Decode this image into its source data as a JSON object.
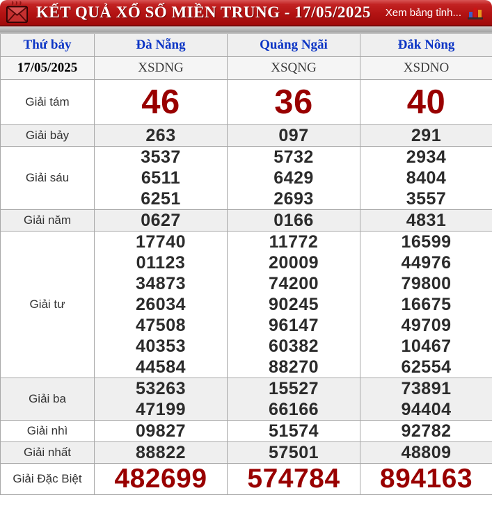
{
  "header": {
    "title": "KẾT QUẢ XỔ SỐ MIỀN TRUNG - 17/05/2025",
    "link_label": "Xem bảng tỉnh...",
    "icons": {
      "left": "envelope-icon",
      "right": "bar-chart-icon"
    },
    "colors": {
      "bar_red": "#b31313",
      "title_text": "#ffffff"
    }
  },
  "table": {
    "columns": [
      "Thứ bảy",
      "Đà Nẵng",
      "Quảng Ngãi",
      "Đắk Nông"
    ],
    "date_row": {
      "label": "17/05/2025",
      "codes": [
        "XSDNG",
        "XSQNG",
        "XSDNO"
      ]
    },
    "colors": {
      "header_text_blue": "#0c35c5",
      "highlight_red": "#990000",
      "number_dark": "#2b2b2b",
      "shade_bg": "#efefef"
    },
    "rows": [
      {
        "label": "Giải tám",
        "style": "big-red",
        "values": [
          [
            "46"
          ],
          [
            "36"
          ],
          [
            "40"
          ]
        ]
      },
      {
        "label": "Giải bảy",
        "style": "normal",
        "values": [
          [
            "263"
          ],
          [
            "097"
          ],
          [
            "291"
          ]
        ]
      },
      {
        "label": "Giải sáu",
        "style": "normal",
        "values": [
          [
            "3537",
            "6511",
            "6251"
          ],
          [
            "5732",
            "6429",
            "2693"
          ],
          [
            "2934",
            "8404",
            "3557"
          ]
        ]
      },
      {
        "label": "Giải năm",
        "style": "normal",
        "values": [
          [
            "0627"
          ],
          [
            "0166"
          ],
          [
            "4831"
          ]
        ]
      },
      {
        "label": "Giải tư",
        "style": "normal",
        "values": [
          [
            "17740",
            "01123",
            "34873",
            "26034",
            "47508",
            "40353",
            "44584"
          ],
          [
            "11772",
            "20009",
            "74200",
            "90245",
            "96147",
            "60382",
            "88270"
          ],
          [
            "16599",
            "44976",
            "79800",
            "16675",
            "49709",
            "10467",
            "62554"
          ]
        ]
      },
      {
        "label": "Giải ba",
        "style": "normal",
        "values": [
          [
            "53263",
            "47199"
          ],
          [
            "15527",
            "66166"
          ],
          [
            "73891",
            "94404"
          ]
        ]
      },
      {
        "label": "Giải nhì",
        "style": "normal",
        "values": [
          [
            "09827"
          ],
          [
            "51574"
          ],
          [
            "92782"
          ]
        ]
      },
      {
        "label": "Giải nhất",
        "style": "normal",
        "values": [
          [
            "88822"
          ],
          [
            "57501"
          ],
          [
            "48809"
          ]
        ]
      },
      {
        "label": "Giải Đặc Biệt",
        "style": "special",
        "values": [
          [
            "482699"
          ],
          [
            "574784"
          ],
          [
            "894163"
          ]
        ]
      }
    ]
  }
}
